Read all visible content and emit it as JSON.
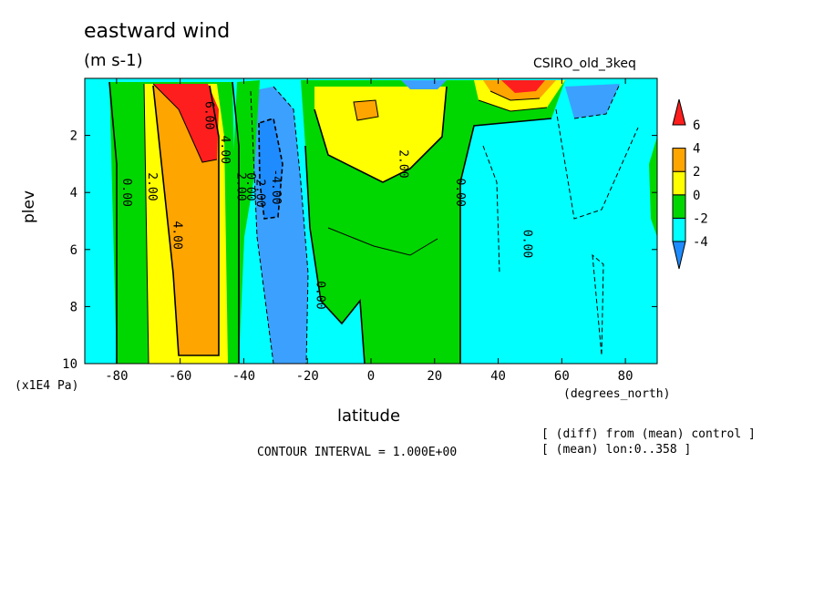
{
  "header": {
    "title": "eastward wind",
    "units": "(m s-1)",
    "model": "CSIRO_old_3keq"
  },
  "footer": {
    "contour_interval": "CONTOUR INTERVAL = 1.000E+00",
    "note_diff": "[ (diff) from (mean) control ]",
    "note_mean": "[ (mean) lon:0..358 ]"
  },
  "colors": {
    "dark_blue": "#1e8cff",
    "mid_blue": "#3ca0ff",
    "cyan": "#00ffff",
    "green": "#00d700",
    "yellow": "#ffff00",
    "orange": "#ffa500",
    "red": "#ff1e1e"
  },
  "chart_data": {
    "type": "contour",
    "title": "eastward wind",
    "xlabel": "latitude",
    "xunits": "(degrees_north)",
    "ylabel": "plev",
    "yunits": "(x1E4 Pa)",
    "xlim": [
      -90,
      90
    ],
    "ylim": [
      10,
      0
    ],
    "xticks": [
      -80,
      -60,
      -40,
      -20,
      0,
      20,
      40,
      60,
      80
    ],
    "xtick_labels": [
      "-80",
      "-60",
      "-40",
      "-20",
      "0",
      "20",
      "40",
      "60",
      "80"
    ],
    "yticks": [
      2,
      4,
      6,
      8,
      10
    ],
    "ytick_labels": [
      "2",
      "4",
      "6",
      "8",
      "10"
    ],
    "contour_interval": 1.0,
    "colorbar": {
      "levels": [
        -4,
        -2,
        0,
        2,
        4,
        6
      ],
      "labels": [
        "-4",
        "-2",
        "0",
        "2",
        "4",
        "6"
      ],
      "colors": [
        "#1e8cff",
        "#00ffff",
        "#00d700",
        "#ffff00",
        "#ffa500",
        "#ff1e1e"
      ]
    },
    "contour_labels": [
      {
        "text": "0.00",
        "lat": -78,
        "p": 4.0
      },
      {
        "text": "2.00",
        "lat": -70,
        "p": 3.8
      },
      {
        "text": "4.00",
        "lat": -62,
        "p": 5.5
      },
      {
        "text": "6.00",
        "lat": -52,
        "p": 1.3
      },
      {
        "text": "4.00",
        "lat": -47,
        "p": 2.5
      },
      {
        "text": "2.00",
        "lat": -42,
        "p": 3.8
      },
      {
        "text": "0.00",
        "lat": -39,
        "p": 3.8
      },
      {
        "text": "-2.00",
        "lat": -36,
        "p": 3.9
      },
      {
        "text": "-4.00",
        "lat": -31,
        "p": 3.8
      },
      {
        "text": "0.00",
        "lat": -17,
        "p": 7.6
      },
      {
        "text": "2.00",
        "lat": 9,
        "p": 3.0
      },
      {
        "text": "0.00",
        "lat": 27,
        "p": 4.0
      },
      {
        "text": "0.00",
        "lat": 48,
        "p": 5.8
      }
    ]
  }
}
